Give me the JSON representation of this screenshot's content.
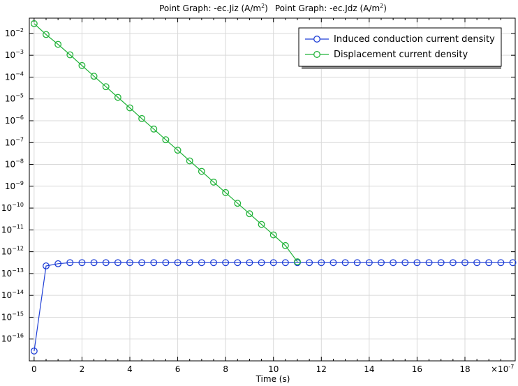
{
  "chart_data": {
    "type": "line",
    "title_parts": [
      {
        "prefix": "Point Graph: -ec.Jiz (A/m",
        "sup": "2",
        "suffix": ")"
      },
      {
        "prefix": "Point Graph: -ec.Jdz (A/m",
        "sup": "2",
        "suffix": ")"
      }
    ],
    "xlabel": "Time (s)",
    "x_multiplier_label": "×10",
    "x_multiplier_exp": "-7",
    "xlim": [
      -0.2,
      20.1
    ],
    "ylim_log10": [
      -17,
      -1.3
    ],
    "y_scale": "log",
    "grid": true,
    "legend_position": "top-right",
    "x_ticks": [
      0,
      2,
      4,
      6,
      8,
      10,
      12,
      14,
      16,
      18
    ],
    "y_tick_exponents": [
      -16,
      -15,
      -14,
      -13,
      -12,
      -11,
      -10,
      -9,
      -8,
      -7,
      -6,
      -5,
      -4,
      -3,
      -2
    ],
    "series": [
      {
        "name": "Induced conduction current density",
        "color": "#1f3fd6",
        "x": [
          0,
          0.5,
          1,
          1.5,
          2,
          2.5,
          3,
          3.5,
          4,
          4.5,
          5,
          5.5,
          6,
          6.5,
          7,
          7.5,
          8,
          8.5,
          9,
          9.5,
          10,
          10.5,
          11,
          11.5,
          12,
          12.5,
          13,
          13.5,
          14,
          14.5,
          15,
          15.5,
          16,
          16.5,
          17,
          17.5,
          18,
          18.5,
          19,
          19.5,
          20
        ],
        "log10_y": [
          -16.55,
          -12.65,
          -12.55,
          -12.5,
          -12.5,
          -12.5,
          -12.5,
          -12.5,
          -12.5,
          -12.5,
          -12.5,
          -12.5,
          -12.5,
          -12.5,
          -12.5,
          -12.5,
          -12.5,
          -12.5,
          -12.5,
          -12.5,
          -12.5,
          -12.5,
          -12.5,
          -12.5,
          -12.5,
          -12.5,
          -12.5,
          -12.5,
          -12.5,
          -12.5,
          -12.5,
          -12.5,
          -12.5,
          -12.5,
          -12.5,
          -12.5,
          -12.5,
          -12.5,
          -12.5,
          -12.5,
          -12.5
        ]
      },
      {
        "name": "Displacement current density",
        "color": "#22b33a",
        "x": [
          0,
          0.5,
          1,
          1.5,
          2,
          2.5,
          3,
          3.5,
          4,
          4.5,
          5,
          5.5,
          6,
          6.5,
          7,
          7.5,
          8,
          8.5,
          9,
          9.5,
          10,
          10.5,
          11
        ],
        "log10_y": [
          -1.55,
          -2.05,
          -2.5,
          -2.98,
          -3.47,
          -3.96,
          -4.44,
          -4.93,
          -5.41,
          -5.9,
          -6.38,
          -6.87,
          -7.35,
          -7.84,
          -8.32,
          -8.81,
          -9.29,
          -9.78,
          -10.26,
          -10.75,
          -11.23,
          -11.72,
          -12.46
        ]
      }
    ]
  }
}
